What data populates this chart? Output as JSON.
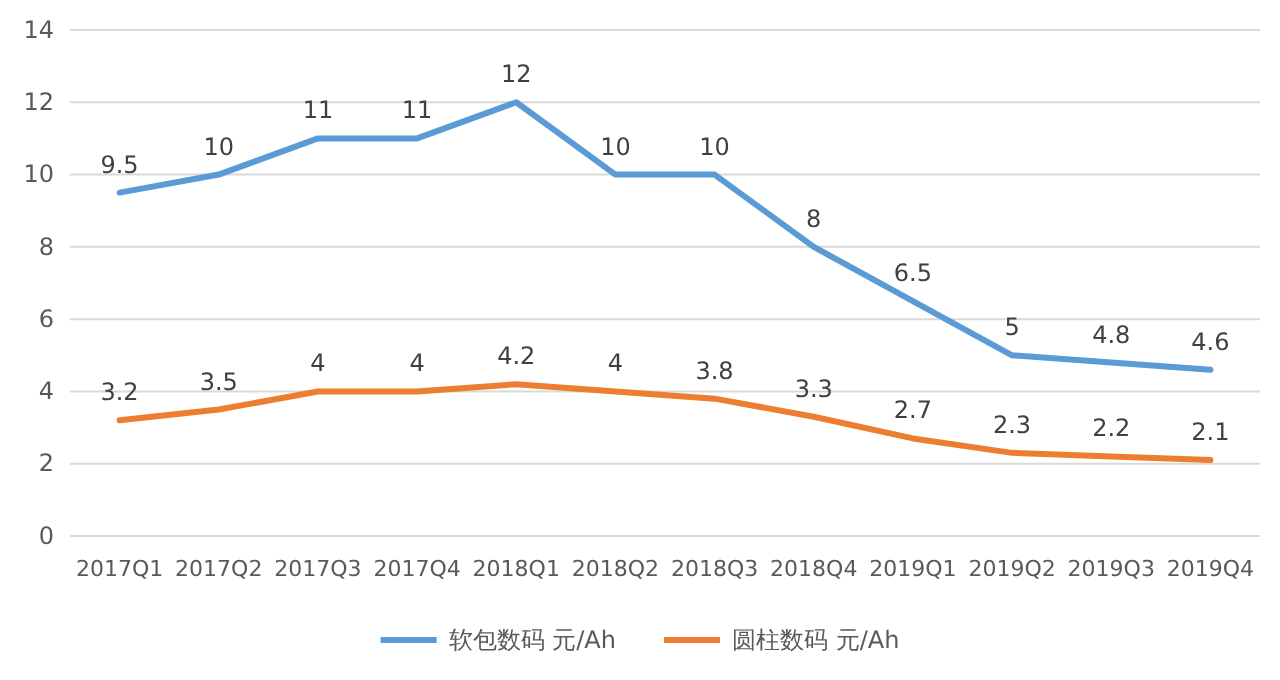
{
  "chart_data": {
    "type": "line",
    "categories": [
      "2017Q1",
      "2017Q2",
      "2017Q3",
      "2017Q4",
      "2018Q1",
      "2018Q2",
      "2018Q3",
      "2018Q4",
      "2019Q1",
      "2019Q2",
      "2019Q3",
      "2019Q4"
    ],
    "series": [
      {
        "name": "软包数码 元/Ah",
        "color": "#5b9bd5",
        "values": [
          9.5,
          10,
          11,
          11,
          12,
          10,
          10,
          8,
          6.5,
          5,
          4.8,
          4.6
        ]
      },
      {
        "name": "圆柱数码 元/Ah",
        "color": "#ed7d31",
        "values": [
          3.2,
          3.5,
          4,
          4,
          4.2,
          4,
          3.8,
          3.3,
          2.7,
          2.3,
          2.2,
          2.1
        ]
      }
    ],
    "ylim": [
      0,
      14
    ],
    "yticks": [
      0,
      2,
      4,
      6,
      8,
      10,
      12,
      14
    ],
    "grid": "y",
    "legend": "bottom",
    "data_labels": true,
    "marker": "none",
    "line_style": "solid"
  }
}
